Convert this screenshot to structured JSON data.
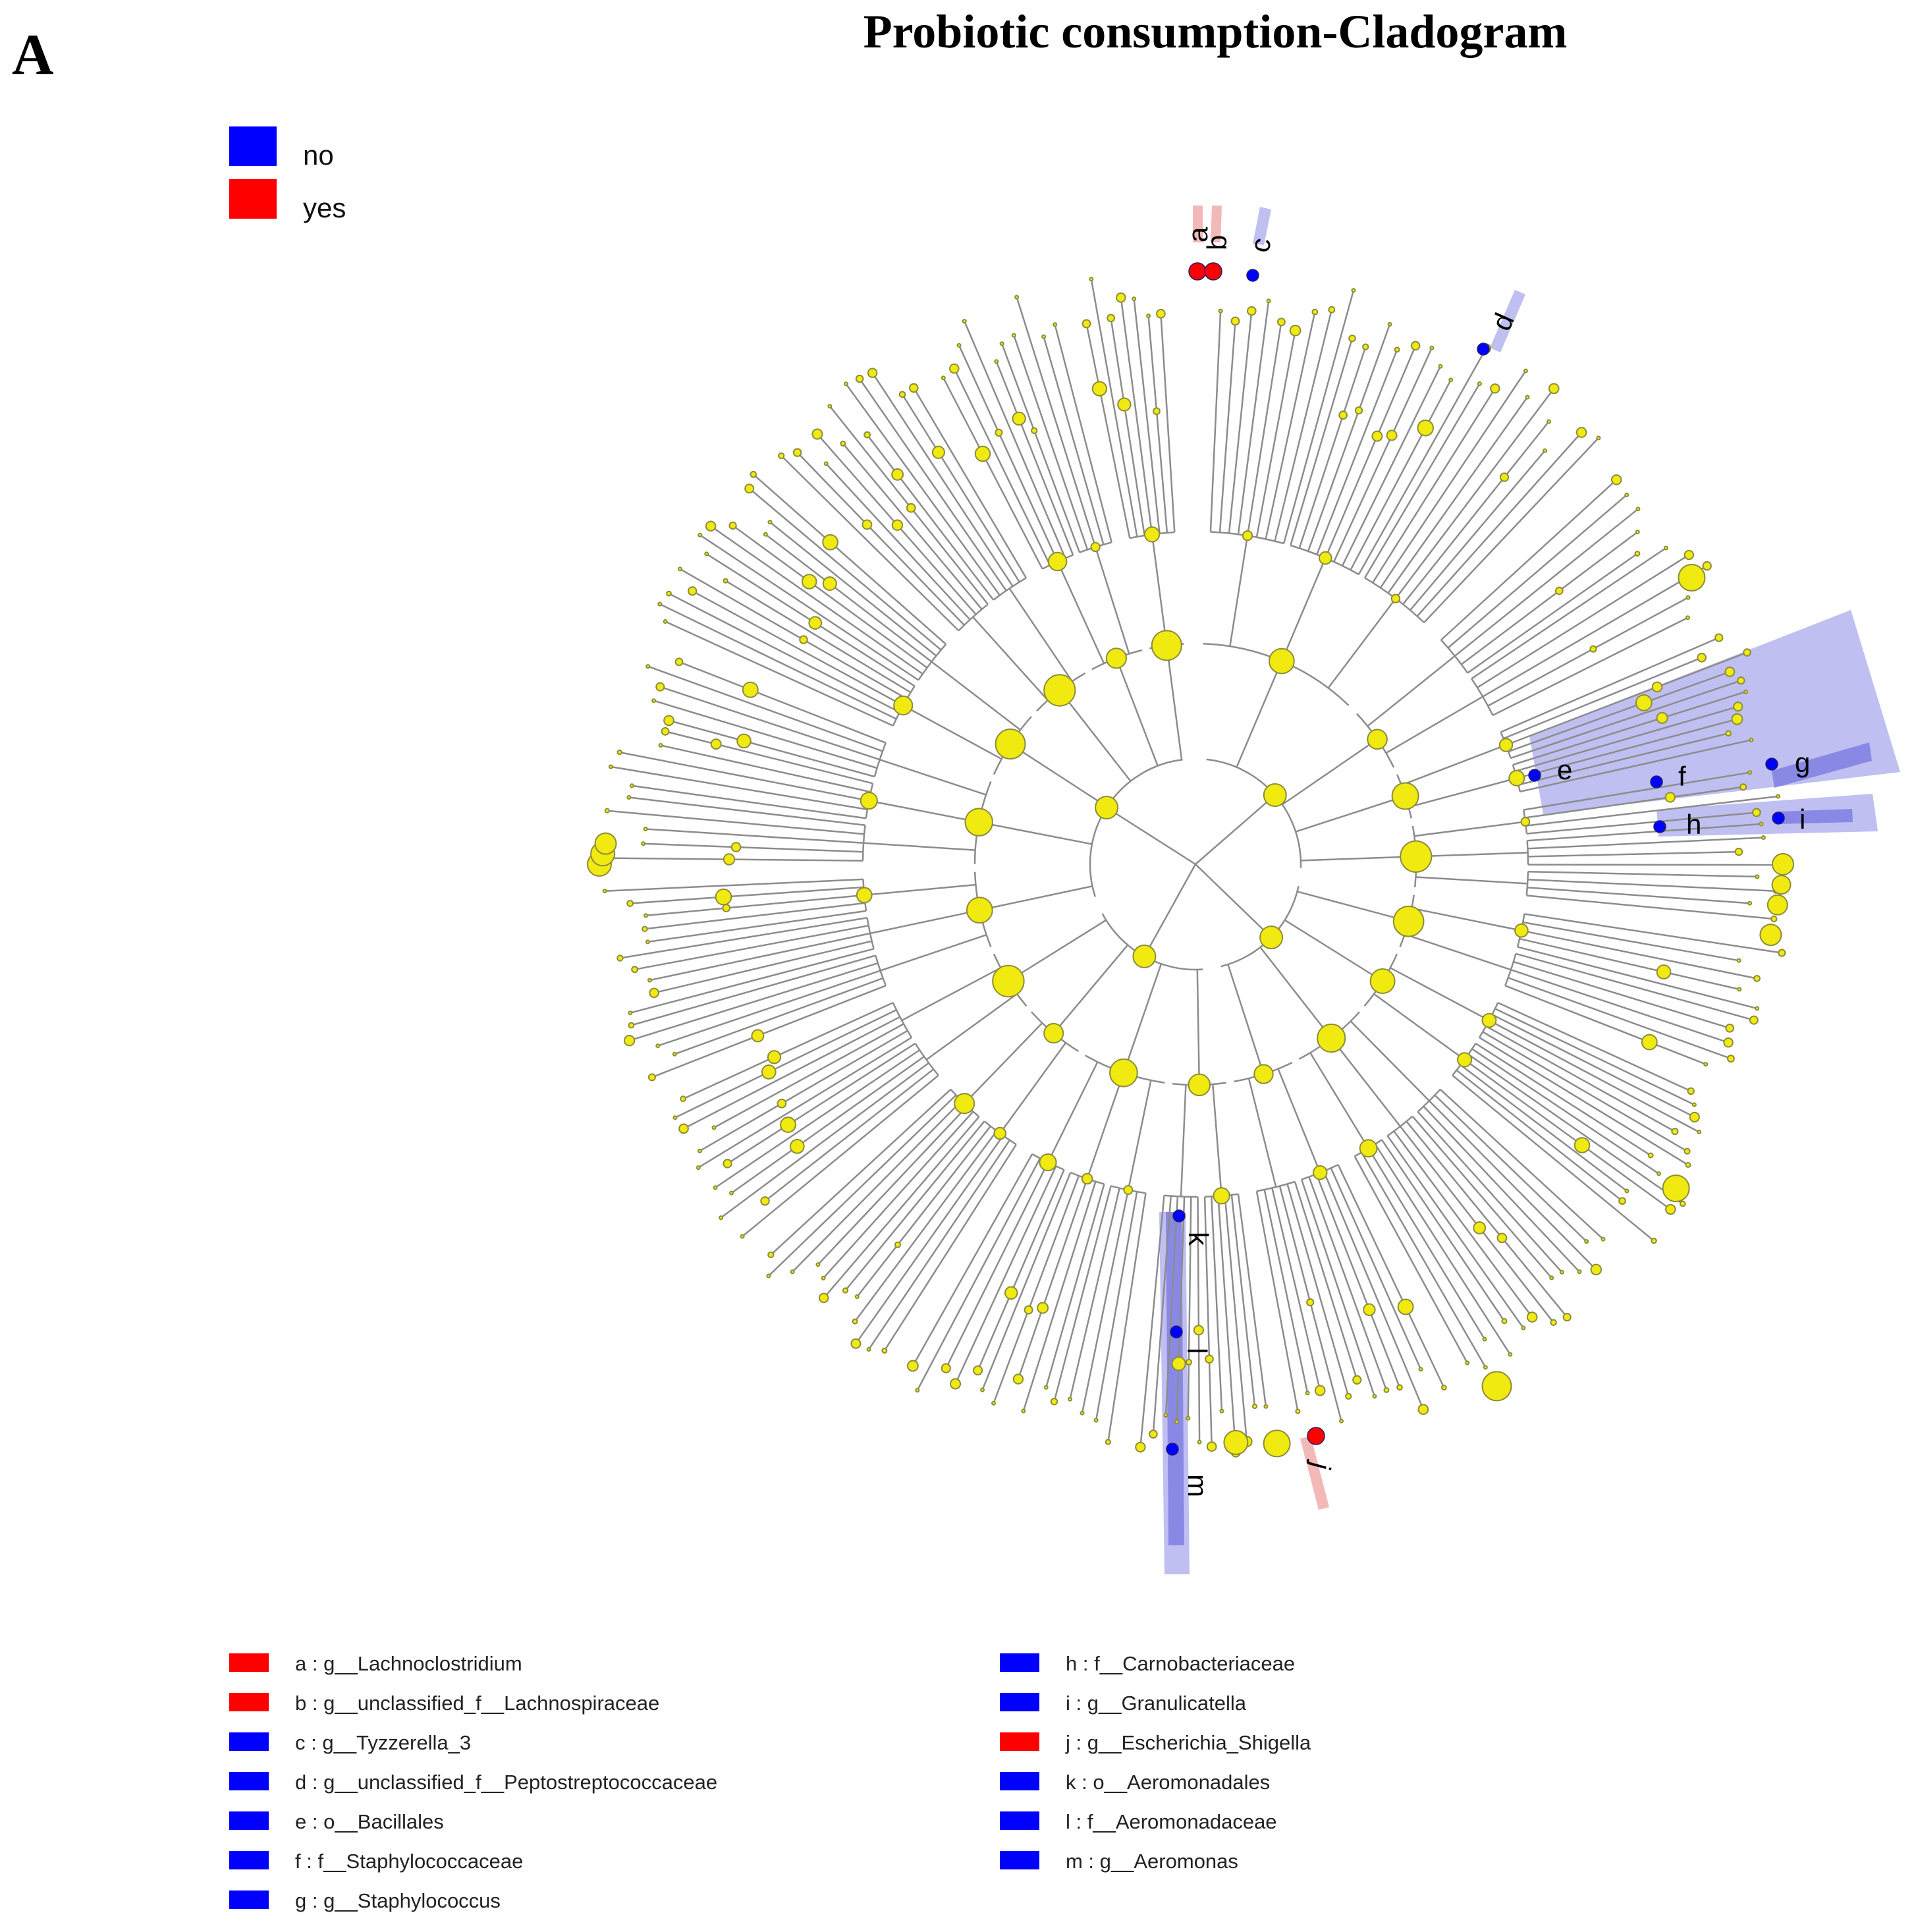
{
  "panel_letter": "A",
  "title": "Probiotic consumption-Cladogram",
  "legend": [
    {
      "label": "no",
      "color": "#0000ff"
    },
    {
      "label": "yes",
      "color": "#ff0000"
    }
  ],
  "colors": {
    "no": "#0000ff",
    "yes": "#ff0000",
    "node_fill": "#f0ea10",
    "node_stroke": "#8c8c3a",
    "branch": "#8c8c8c",
    "highlight_no": "#aaaaee",
    "highlight_yes": "#f2b0b0"
  },
  "markers": [
    {
      "letter": "a",
      "group": "yes"
    },
    {
      "letter": "b",
      "group": "yes"
    },
    {
      "letter": "c",
      "group": "no"
    },
    {
      "letter": "d",
      "group": "no"
    },
    {
      "letter": "e",
      "group": "no"
    },
    {
      "letter": "f",
      "group": "no"
    },
    {
      "letter": "g",
      "group": "no"
    },
    {
      "letter": "h",
      "group": "no"
    },
    {
      "letter": "i",
      "group": "no"
    },
    {
      "letter": "j",
      "group": "yes"
    },
    {
      "letter": "k",
      "group": "no"
    },
    {
      "letter": "l",
      "group": "no"
    },
    {
      "letter": "m",
      "group": "no"
    }
  ],
  "taxa_key": [
    {
      "text": "a : g__Lachnoclostridium",
      "group": "yes"
    },
    {
      "text": "b : g__unclassified_f__Lachnospiraceae",
      "group": "yes"
    },
    {
      "text": "c : g__Tyzzerella_3",
      "group": "no"
    },
    {
      "text": "d : g__unclassified_f__Peptostreptococcaceae",
      "group": "no"
    },
    {
      "text": "e : o__Bacillales",
      "group": "no"
    },
    {
      "text": "f : f__Staphylococcaceae",
      "group": "no"
    },
    {
      "text": "g : g__Staphylococcus",
      "group": "no"
    },
    {
      "text": "h : f__Carnobacteriaceae",
      "group": "no"
    },
    {
      "text": "i : g__Granulicatella",
      "group": "no"
    },
    {
      "text": "j : g__Escherichia_Shigella",
      "group": "yes"
    },
    {
      "text": "k : o__Aeromonadales",
      "group": "no"
    },
    {
      "text": "l : f__Aeromonadaceae",
      "group": "no"
    },
    {
      "text": "m : g__Aeromonas",
      "group": "no"
    }
  ]
}
